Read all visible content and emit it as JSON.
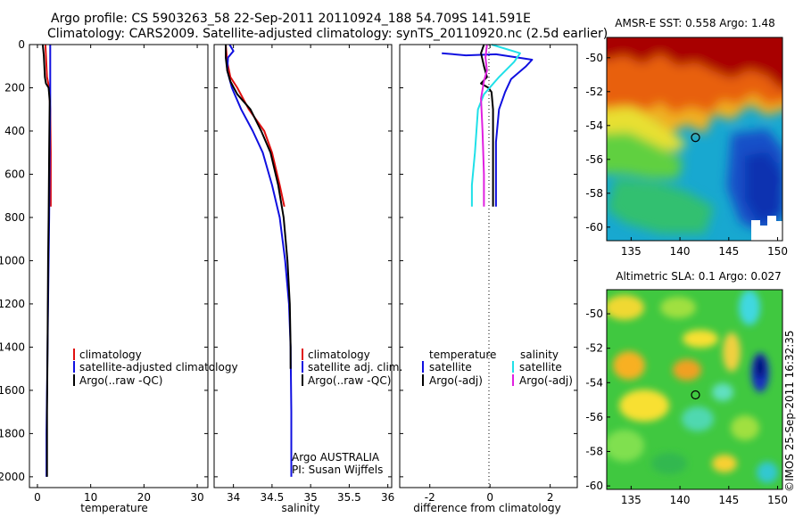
{
  "figure": {
    "title_line1": "Argo profile: CS 5903263_58 22-Sep-2011 20110924_188 54.709S 141.591E",
    "title_line2": "Climatology: CARS2009. Satellite-adjusted climatology: synTS_20110920.nc (2.5d earlier)",
    "footer_credit": "©IMOS 25-Sep-2011 16:32:35"
  },
  "colors": {
    "climatology": "#e01010",
    "satellite": "#1010e0",
    "argo": "#000000",
    "satellite_diff_salinity": "#20e0e8",
    "argo_diff_salinity": "#e020e0"
  },
  "chart_data": [
    {
      "id": "temperature",
      "type": "line",
      "xlabel": "temperature",
      "ylabel": "",
      "xlim": [
        -1.5,
        32
      ],
      "ylim": [
        2050,
        0
      ],
      "yreverse": true,
      "xticks": [
        0,
        10,
        20,
        30
      ],
      "xticklabels": [
        "0",
        "10",
        "20",
        "30"
      ],
      "yticks": [
        0,
        200,
        400,
        600,
        800,
        1000,
        1200,
        1400,
        1600,
        1800,
        2000
      ],
      "yticklabels": [
        "0",
        "200",
        "400",
        "600",
        "800",
        "1000",
        "1200",
        "1400",
        "1600",
        "1800",
        "2000"
      ],
      "legend": [
        "climatology",
        "satellite-adjusted climatology",
        "Argo(..raw -QC)"
      ],
      "series": [
        {
          "name": "climatology",
          "color_key": "climatology",
          "x": [
            1.5,
            1.6,
            1.8,
            2.2,
            2.4,
            2.5,
            2.5
          ],
          "y": [
            0,
            50,
            150,
            200,
            300,
            500,
            750
          ]
        },
        {
          "name": "satellite-adjusted climatology",
          "color_key": "satellite",
          "x": [
            2.4,
            2.4,
            2.4,
            2.3,
            2.2,
            2.1,
            2.0,
            1.9,
            1.8,
            1.7,
            1.7
          ],
          "y": [
            0,
            100,
            300,
            500,
            800,
            1000,
            1200,
            1400,
            1600,
            1800,
            2000
          ]
        },
        {
          "name": "Argo(..raw -QC)",
          "color_key": "argo",
          "x": [
            1.0,
            1.2,
            1.3,
            1.4,
            1.6,
            2.1,
            2.3,
            2.2,
            2.1,
            2.0,
            1.9,
            1.8,
            1.8
          ],
          "y": [
            0,
            50,
            100,
            150,
            180,
            200,
            260,
            500,
            800,
            1000,
            1400,
            1700,
            2000
          ]
        }
      ]
    },
    {
      "id": "salinity",
      "type": "line",
      "xlabel": "salinity",
      "ylabel": "",
      "xlim": [
        33.75,
        36.05
      ],
      "ylim": [
        2050,
        0
      ],
      "yreverse": true,
      "xticks": [
        34,
        34.5,
        35,
        35.5,
        36
      ],
      "xticklabels": [
        "34",
        "34.5",
        "35",
        "35.5",
        "36"
      ],
      "legend": [
        "climatology",
        "satellite adj. clim.",
        "Argo(..raw -QC)"
      ],
      "annotations": [
        "Argo AUSTRALIA",
        "PI: Susan Wijffels"
      ],
      "series": [
        {
          "name": "climatology",
          "color_key": "climatology",
          "x": [
            33.9,
            33.92,
            33.96,
            34.05,
            34.2,
            34.4,
            34.5,
            34.6,
            34.66
          ],
          "y": [
            0,
            80,
            150,
            200,
            300,
            400,
            500,
            650,
            750
          ]
        },
        {
          "name": "satellite adj. clim.",
          "color_key": "satellite",
          "x": [
            33.95,
            34.0,
            33.93,
            33.92,
            33.98,
            34.1,
            34.25,
            34.38,
            34.5,
            34.6,
            34.67,
            34.72,
            34.74,
            34.75,
            34.75
          ],
          "y": [
            0,
            30,
            60,
            120,
            200,
            300,
            400,
            500,
            650,
            800,
            1000,
            1200,
            1400,
            1700,
            2000
          ]
        },
        {
          "name": "Argo(..raw -QC)",
          "color_key": "argo",
          "x": [
            33.9,
            33.9,
            33.92,
            33.96,
            34.05,
            34.22,
            34.36,
            34.48,
            34.58,
            34.65,
            34.7,
            34.73,
            34.74,
            34.74
          ],
          "y": [
            0,
            60,
            120,
            170,
            230,
            300,
            400,
            500,
            650,
            800,
            1000,
            1200,
            1400,
            1500
          ]
        }
      ]
    },
    {
      "id": "difference",
      "type": "line",
      "xlabel": "difference from climatology",
      "ylabel": "",
      "xlim": [
        -3.0,
        2.9
      ],
      "ylim": [
        2050,
        0
      ],
      "yreverse": true,
      "xticks": [
        -2,
        0,
        2
      ],
      "xticklabels": [
        "-2",
        "0",
        "2"
      ],
      "legend_headers": [
        "temperature",
        "salinity"
      ],
      "legend_temperature": [
        "satellite",
        "Argo(-adj)"
      ],
      "legend_salinity": [
        "satellite",
        "Argo(-adj)"
      ],
      "series": [
        {
          "name": "temperature satellite",
          "color_key": "satellite",
          "x": [
            -1.6,
            -0.8,
            0.2,
            1.4,
            1.2,
            0.7,
            0.5,
            0.3,
            0.2,
            0.2,
            0.2
          ],
          "y": [
            40,
            50,
            45,
            70,
            100,
            160,
            220,
            300,
            450,
            600,
            750
          ]
        },
        {
          "name": "temperature Argo(-adj)",
          "color_key": "argo",
          "x": [
            -0.2,
            -0.3,
            -0.2,
            -0.1,
            -0.3,
            -0.05,
            0.05,
            0.1,
            0.1,
            0.1,
            0.1
          ],
          "y": [
            0,
            40,
            100,
            150,
            180,
            200,
            220,
            300,
            500,
            650,
            750
          ]
        },
        {
          "name": "salinity satellite",
          "color_key": "satellite_diff_salinity",
          "x": [
            0.05,
            1.0,
            0.8,
            0.3,
            -0.2,
            -0.4,
            -0.5,
            -0.6,
            -0.6
          ],
          "y": [
            0,
            40,
            80,
            150,
            230,
            300,
            500,
            650,
            750
          ]
        },
        {
          "name": "salinity Argo(-adj)",
          "color_key": "argo_diff_salinity",
          "x": [
            -0.1,
            -0.15,
            -0.1,
            -0.2,
            -0.3,
            -0.25,
            -0.2,
            -0.2
          ],
          "y": [
            0,
            60,
            120,
            170,
            250,
            400,
            600,
            750
          ]
        }
      ]
    },
    {
      "id": "amsre_sst_map",
      "type": "heatmap",
      "title": "AMSR-E SST: 0.558 Argo: 1.48",
      "xticks": [
        135,
        140,
        145,
        150
      ],
      "xticklabels": [
        "135",
        "140",
        "145",
        "150"
      ],
      "yticks": [
        -50,
        -52,
        -54,
        -56,
        -58,
        -60
      ],
      "yticklabels": [
        "-50",
        "-52",
        "-54",
        "-56",
        "-58",
        "-60"
      ],
      "xlim": [
        132.5,
        150.5
      ],
      "ylim": [
        -60.8,
        -48.8
      ],
      "marker": {
        "lon": 141.591,
        "lat": -54.709
      }
    },
    {
      "id": "altimetric_sla_map",
      "type": "heatmap",
      "title": "Altimetric SLA: 0.1 Argo: 0.027",
      "xticks": [
        135,
        140,
        145,
        150
      ],
      "xticklabels": [
        "135",
        "140",
        "145",
        "150"
      ],
      "yticks": [
        -50,
        -52,
        -54,
        -56,
        -58,
        -60
      ],
      "yticklabels": [
        "-50",
        "-52",
        "-54",
        "-56",
        "-58",
        "-60"
      ],
      "xlim": [
        132.5,
        150.5
      ],
      "ylim": [
        -60.2,
        -48.6
      ],
      "marker": {
        "lon": 141.591,
        "lat": -54.709
      }
    }
  ]
}
